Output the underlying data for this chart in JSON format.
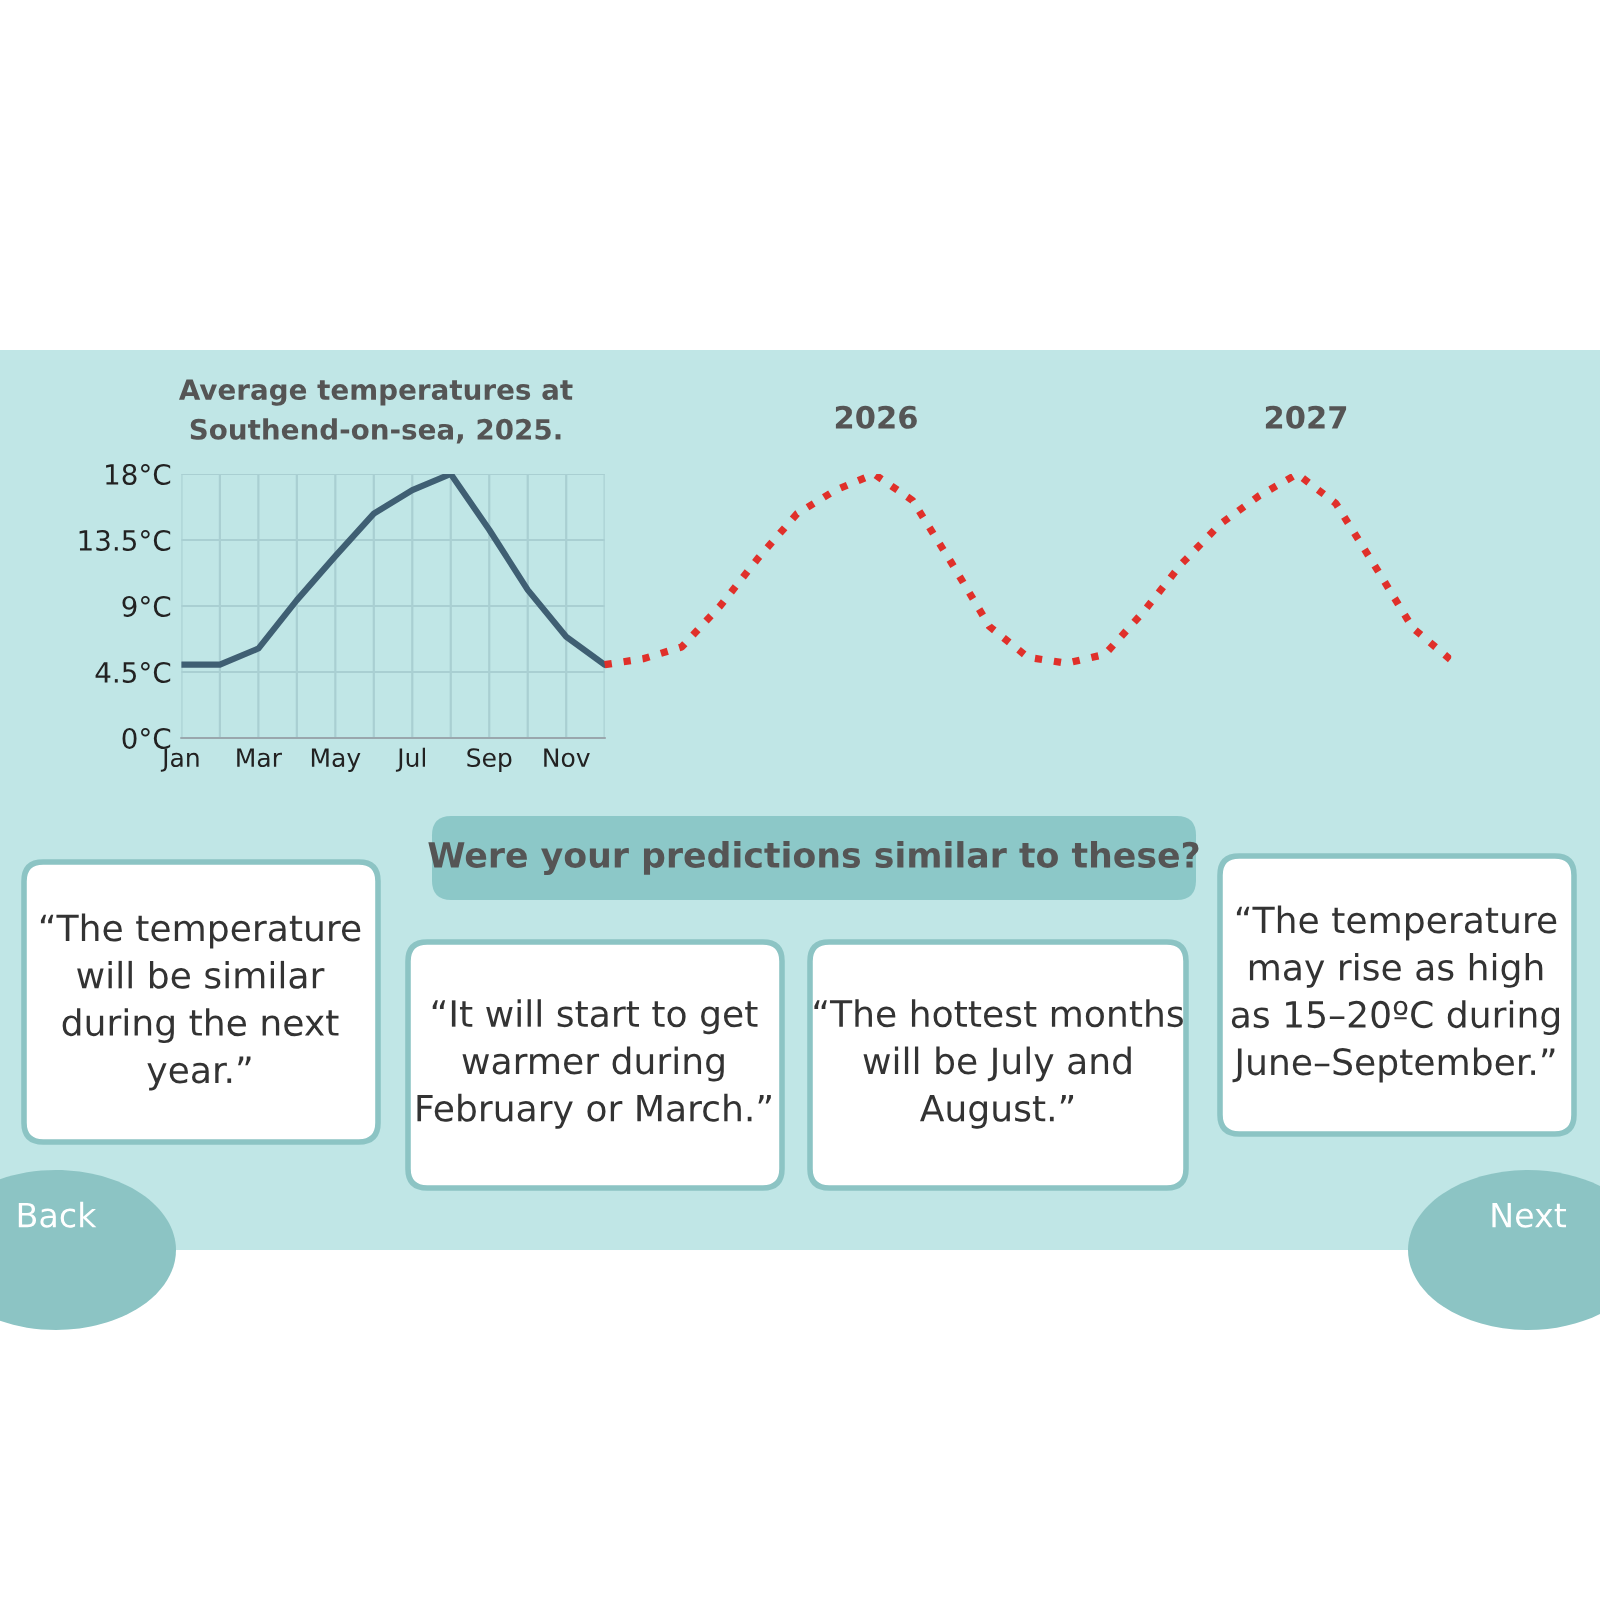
{
  "chart_data": {
    "type": "line",
    "title": "Average temperatures at\nSouthend-on-sea, 2025.",
    "categories": [
      "Jan",
      null,
      "Mar",
      null,
      "May",
      null,
      "Jul",
      null,
      "Sep",
      null,
      "Nov",
      null,
      null,
      null,
      null,
      null,
      null,
      null,
      null,
      null,
      null,
      null,
      null,
      null,
      null,
      null,
      null,
      null,
      null,
      null,
      null,
      null,
      null,
      null
    ],
    "ylim": [
      0,
      18
    ],
    "yticks": [
      {
        "value": 0,
        "label": "0°C"
      },
      {
        "value": 4.5,
        "label": "4.5°C"
      },
      {
        "value": 9,
        "label": "9°C"
      },
      {
        "value": 13.5,
        "label": "13.5°C"
      },
      {
        "value": 18,
        "label": "18°C"
      }
    ],
    "grid": true,
    "series": [
      {
        "color": "#3f5f73",
        "line_style": "solid",
        "values": [
          5.0,
          5.0,
          6.1,
          9.4,
          12.4,
          15.3,
          16.9,
          18.0,
          14.2,
          10.1,
          6.9,
          5.0,
          null,
          null,
          null,
          null,
          null,
          null,
          null,
          null,
          null,
          null,
          null,
          null,
          null,
          null,
          null,
          null,
          null,
          null,
          null,
          null,
          null,
          null
        ]
      },
      {
        "color": "#e0302a",
        "line_style": "dotted",
        "values": [
          null,
          null,
          null,
          null,
          null,
          null,
          null,
          null,
          null,
          null,
          null,
          5.0,
          5.4,
          6.2,
          9.0,
          12.3,
          15.3,
          16.9,
          18.0,
          16.2,
          12.0,
          7.6,
          5.5,
          5.1,
          5.7,
          8.6,
          11.9,
          14.6,
          16.5,
          18.0,
          16.0,
          11.8,
          7.5,
          5.3
        ]
      }
    ],
    "annotations": [
      "2026",
      "2027",
      "Were your predictions similar to these?",
      "“The temperature\nwill be similar\nduring the next\nyear.”",
      "“It will start to get\nwarmer during\nFebruary or March.”",
      "“The hottest months\nwill be July and\nAugust.”",
      "“The temperature\nmay rise as high\nas 15–20ºC during\nJune–September.”",
      "Back",
      "Next"
    ]
  }
}
